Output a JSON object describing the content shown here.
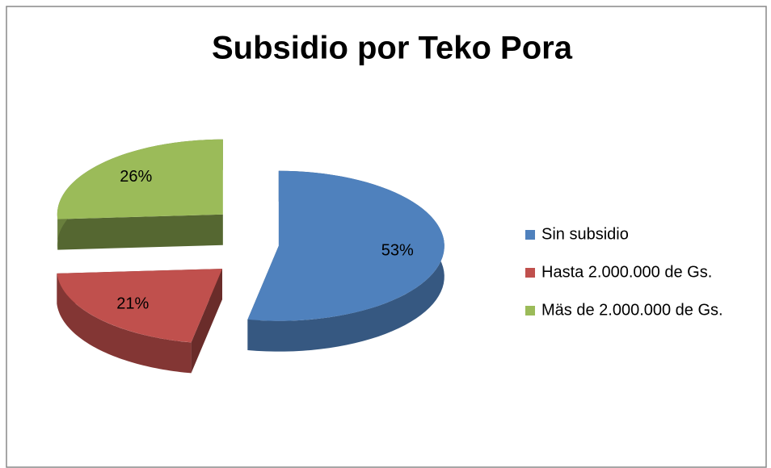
{
  "chart_data": {
    "type": "pie",
    "title": "Subsidio por Teko Pora",
    "categories": [
      "Sin subsidio",
      "Hasta 2.000.000 de Gs.",
      "Mäs de 2.000.000 de Gs."
    ],
    "values": [
      53,
      21,
      26
    ],
    "value_labels": [
      "53%",
      "21%",
      "26%"
    ],
    "colors": [
      "#4f81bd",
      "#c0504d",
      "#9bbb59"
    ],
    "legend": "right"
  }
}
